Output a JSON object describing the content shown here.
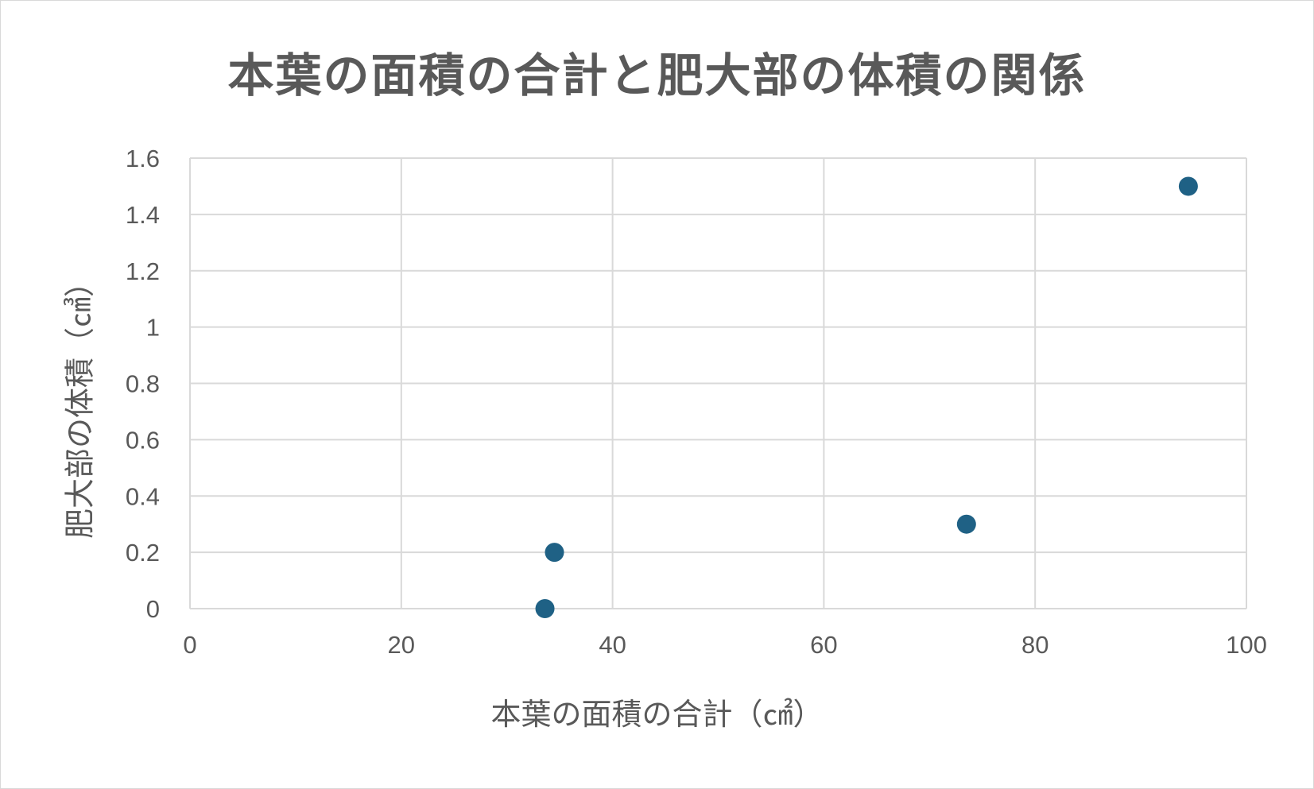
{
  "chart_data": {
    "type": "scatter",
    "title": "本葉の面積の合計と肥大部の体積の関係",
    "xlabel": "本葉の面積の合計（㎠）",
    "ylabel": "肥大部の体積（㎤）",
    "xlim": [
      0,
      100
    ],
    "ylim": [
      0,
      1.6
    ],
    "x_ticks": [
      "0",
      "20",
      "40",
      "60",
      "80",
      "100"
    ],
    "y_ticks": [
      "0",
      "0.2",
      "0.4",
      "0.6",
      "0.8",
      "1",
      "1.2",
      "1.4",
      "1.6"
    ],
    "grid": true,
    "series": [
      {
        "color": "#1f6185",
        "points": [
          {
            "x": 33.6,
            "y": 0.0
          },
          {
            "x": 34.5,
            "y": 0.2
          },
          {
            "x": 73.5,
            "y": 0.3
          },
          {
            "x": 94.5,
            "y": 1.5
          }
        ]
      }
    ],
    "colors": {
      "grid": "#d9d9d9",
      "axis_text": "#595959",
      "marker": "#1f6185"
    }
  }
}
